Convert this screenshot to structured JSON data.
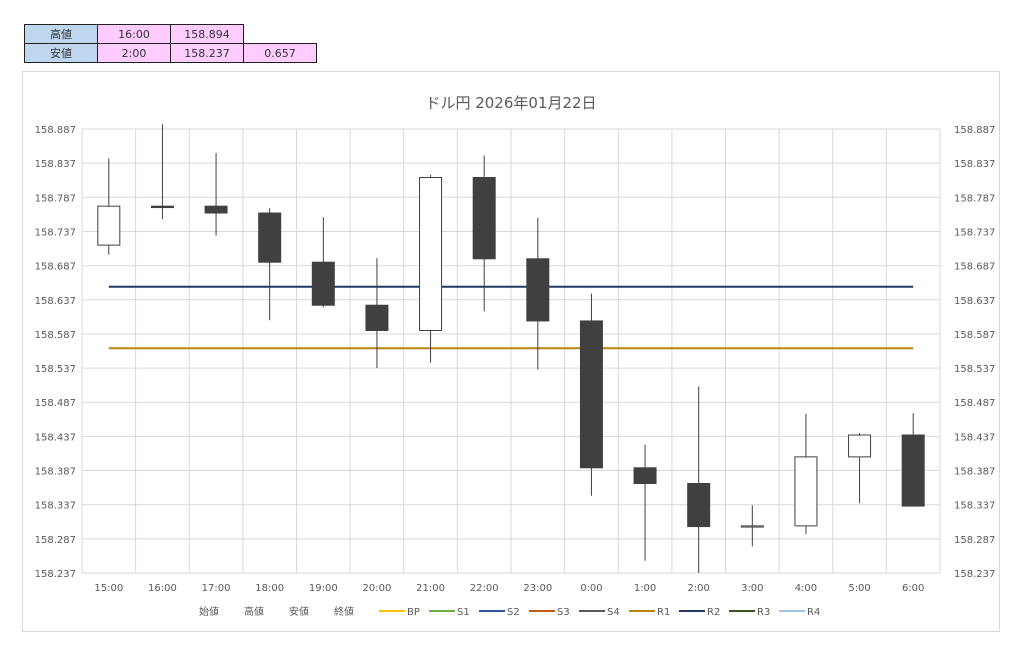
{
  "summary_table": {
    "rows": [
      {
        "label": "高値",
        "time": "16:00",
        "value": "158.894",
        "range": ""
      },
      {
        "label": "安値",
        "time": "2:00",
        "value": "158.237",
        "range": "0.657"
      }
    ]
  },
  "chart_data": {
    "type": "candlestick",
    "title": "ドル円 2026年01月22日",
    "categories": [
      "15:00",
      "16:00",
      "17:00",
      "18:00",
      "19:00",
      "20:00",
      "21:00",
      "22:00",
      "23:00",
      "0:00",
      "1:00",
      "2:00",
      "3:00",
      "4:00",
      "5:00",
      "6:00"
    ],
    "ylim": [
      158.237,
      158.887
    ],
    "y_ticks": [
      "158.887",
      "158.837",
      "158.787",
      "158.737",
      "158.687",
      "158.637",
      "158.587",
      "158.537",
      "158.487",
      "158.437",
      "158.387",
      "158.337",
      "158.287",
      "158.237"
    ],
    "y_tick_values": [
      158.887,
      158.837,
      158.787,
      158.737,
      158.687,
      158.637,
      158.587,
      158.537,
      158.487,
      158.437,
      158.387,
      158.337,
      158.287,
      158.237
    ],
    "candles": [
      {
        "open": 158.717,
        "high": 158.844,
        "low": 158.703,
        "close": 158.774
      },
      {
        "open": 158.774,
        "high": 158.894,
        "low": 158.755,
        "close": 158.772
      },
      {
        "open": 158.774,
        "high": 158.852,
        "low": 158.731,
        "close": 158.764
      },
      {
        "open": 158.764,
        "high": 158.771,
        "low": 158.607,
        "close": 158.692
      },
      {
        "open": 158.692,
        "high": 158.758,
        "low": 158.626,
        "close": 158.629
      },
      {
        "open": 158.629,
        "high": 158.698,
        "low": 158.537,
        "close": 158.592
      },
      {
        "open": 158.592,
        "high": 158.82,
        "low": 158.545,
        "close": 158.816
      },
      {
        "open": 158.816,
        "high": 158.848,
        "low": 158.62,
        "close": 158.697
      },
      {
        "open": 158.697,
        "high": 158.757,
        "low": 158.535,
        "close": 158.606
      },
      {
        "open": 158.606,
        "high": 158.646,
        "low": 158.35,
        "close": 158.391
      },
      {
        "open": 158.391,
        "high": 158.425,
        "low": 158.255,
        "close": 158.368
      },
      {
        "open": 158.368,
        "high": 158.51,
        "low": 158.237,
        "close": 158.305
      },
      {
        "open": 158.305,
        "high": 158.336,
        "low": 158.276,
        "close": 158.306
      },
      {
        "open": 158.306,
        "high": 158.47,
        "low": 158.294,
        "close": 158.407
      },
      {
        "open": 158.407,
        "high": 158.442,
        "low": 158.339,
        "close": 158.439
      },
      {
        "open": 158.439,
        "high": 158.471,
        "low": 158.335,
        "close": 158.335
      }
    ],
    "lines": [
      {
        "name": "R2",
        "value": 158.656,
        "color": "#1f3864"
      },
      {
        "name": "R1",
        "value": 158.566,
        "color": "#b8860b"
      }
    ],
    "legend_position": "bottom",
    "legend": [
      {
        "name": "始値",
        "color": "",
        "marker": "none"
      },
      {
        "name": "高値",
        "color": "",
        "marker": "none"
      },
      {
        "name": "安値",
        "color": "",
        "marker": "none"
      },
      {
        "name": "終値",
        "color": "",
        "marker": "none"
      },
      {
        "name": "BP",
        "color": "#ffc000",
        "marker": "line"
      },
      {
        "name": "S1",
        "color": "#70ad47",
        "marker": "line"
      },
      {
        "name": "S2",
        "color": "#2e5597",
        "marker": "line"
      },
      {
        "name": "S3",
        "color": "#c55a11",
        "marker": "line"
      },
      {
        "name": "S4",
        "color": "#595959",
        "marker": "line"
      },
      {
        "name": "R1",
        "color": "#b8860b",
        "marker": "line"
      },
      {
        "name": "R2",
        "color": "#1f3864",
        "marker": "line"
      },
      {
        "name": "R3",
        "color": "#375623",
        "marker": "line"
      },
      {
        "name": "R4",
        "color": "#9dc3e6",
        "marker": "line"
      }
    ],
    "colors": {
      "down_fill": "#404040",
      "up_fill": "#ffffff",
      "candle_stroke": "#404040",
      "grid": "#d9d9d9"
    },
    "grid": true
  }
}
